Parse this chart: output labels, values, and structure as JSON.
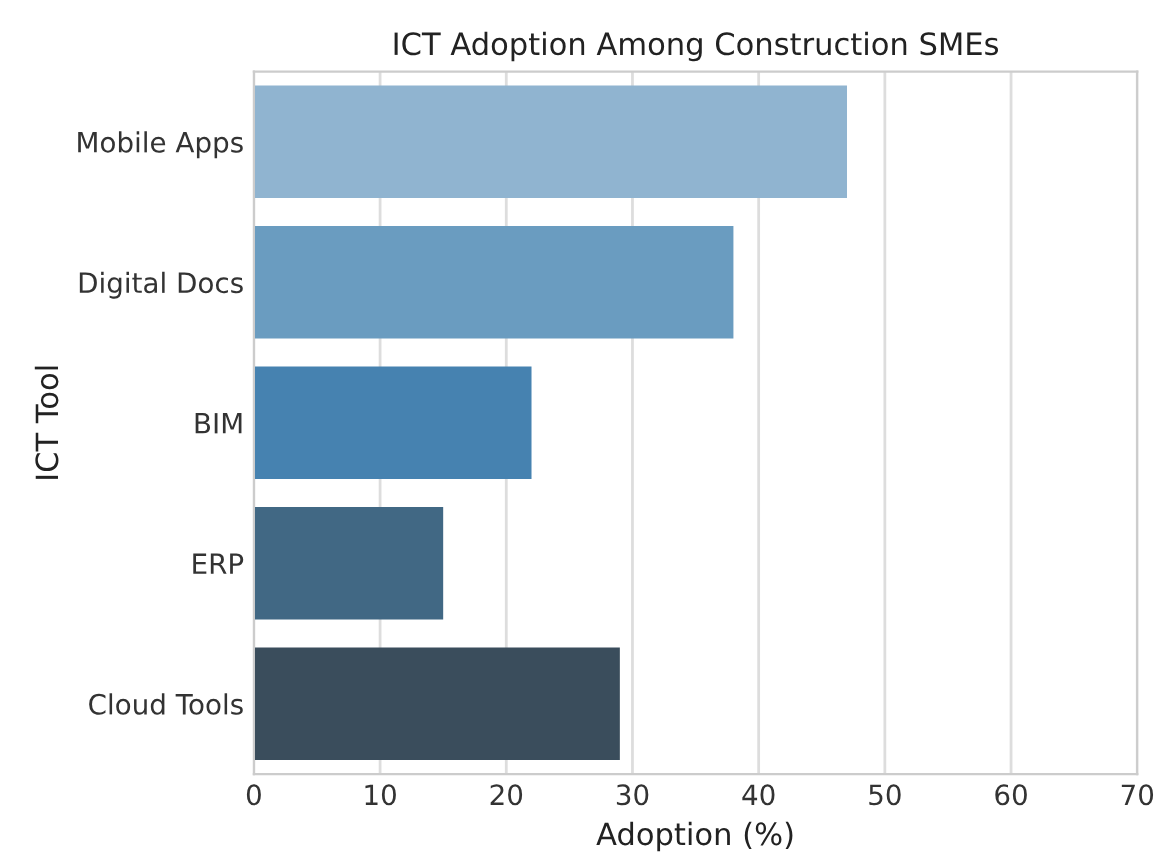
{
  "chart_data": {
    "type": "bar",
    "orientation": "horizontal",
    "title": "ICT Adoption Among Construction SMEs",
    "xlabel": "Adoption (%)",
    "ylabel": "ICT Tool",
    "categories": [
      "Mobile Apps",
      "Digital Docs",
      "BIM",
      "ERP",
      "Cloud Tools"
    ],
    "values": [
      47,
      38,
      22,
      15,
      29
    ],
    "colors": [
      "#90b4d0",
      "#6a9cc0",
      "#4682b0",
      "#416884",
      "#3a4d5c"
    ],
    "xlim": [
      0,
      70
    ],
    "xticks": [
      0,
      10,
      20,
      30,
      40,
      50,
      60,
      70
    ],
    "grid": "x"
  }
}
